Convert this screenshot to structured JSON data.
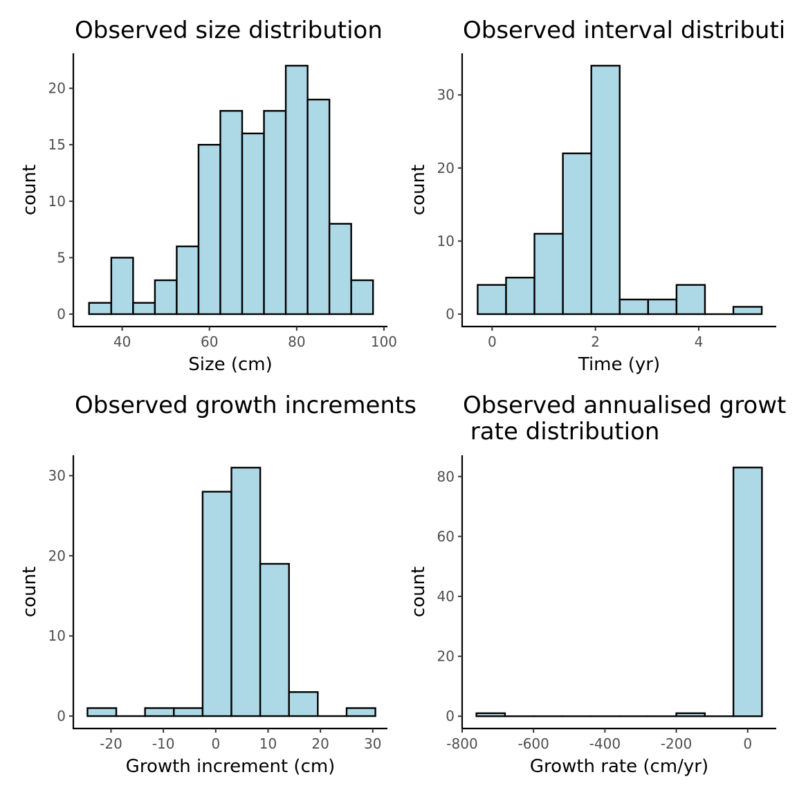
{
  "figure": {
    "bar_fill": "#ADD8E6",
    "bar_outline": "#000000",
    "background": "#FFFFFF"
  },
  "chart_data": [
    {
      "type": "bar",
      "title": [
        "Observed size distribution"
      ],
      "xlabel": "Size (cm)",
      "ylabel": "count",
      "xlim": [
        28.8,
        100.8
      ],
      "ylim": [
        -1.1,
        23.1
      ],
      "xticks": [
        40,
        60,
        80,
        100
      ],
      "xtick_labels": [
        "40",
        "60",
        "80",
        "100"
      ],
      "yticks": [
        0,
        5,
        10,
        15,
        20
      ],
      "ytick_labels": [
        "0",
        "5",
        "10",
        "15",
        "20"
      ],
      "bins": [
        {
          "x0": 32.4,
          "x1": 37.5,
          "count": 1
        },
        {
          "x0": 37.5,
          "x1": 42.5,
          "count": 5
        },
        {
          "x0": 42.5,
          "x1": 47.5,
          "count": 1
        },
        {
          "x0": 47.5,
          "x1": 52.5,
          "count": 3
        },
        {
          "x0": 52.5,
          "x1": 57.5,
          "count": 6
        },
        {
          "x0": 57.5,
          "x1": 62.5,
          "count": 15
        },
        {
          "x0": 62.5,
          "x1": 67.5,
          "count": 18
        },
        {
          "x0": 67.5,
          "x1": 72.5,
          "count": 16
        },
        {
          "x0": 72.5,
          "x1": 77.5,
          "count": 18
        },
        {
          "x0": 77.5,
          "x1": 82.5,
          "count": 22
        },
        {
          "x0": 82.5,
          "x1": 87.5,
          "count": 19
        },
        {
          "x0": 87.5,
          "x1": 92.5,
          "count": 8
        },
        {
          "x0": 92.5,
          "x1": 97.5,
          "count": 3
        }
      ]
    },
    {
      "type": "bar",
      "title": [
        "Observed interval distributi"
      ],
      "xlabel": "Time (yr)",
      "ylabel": "count",
      "xlim": [
        -0.58,
        5.5
      ],
      "ylim": [
        -1.7,
        35.7
      ],
      "xticks": [
        0,
        2,
        4
      ],
      "xtick_labels": [
        "0",
        "2",
        "4"
      ],
      "yticks": [
        0,
        10,
        20,
        30
      ],
      "ytick_labels": [
        "0",
        "10",
        "20",
        "30"
      ],
      "bins": [
        {
          "x0": -0.28,
          "x1": 0.27,
          "count": 4
        },
        {
          "x0": 0.27,
          "x1": 0.82,
          "count": 5
        },
        {
          "x0": 0.82,
          "x1": 1.37,
          "count": 11
        },
        {
          "x0": 1.37,
          "x1": 1.92,
          "count": 22
        },
        {
          "x0": 1.92,
          "x1": 2.47,
          "count": 34
        },
        {
          "x0": 2.47,
          "x1": 3.02,
          "count": 2
        },
        {
          "x0": 3.02,
          "x1": 3.57,
          "count": 2
        },
        {
          "x0": 3.57,
          "x1": 4.12,
          "count": 4
        },
        {
          "x0": 4.12,
          "x1": 4.67,
          "count": 0
        },
        {
          "x0": 4.67,
          "x1": 5.22,
          "count": 1
        }
      ]
    },
    {
      "type": "bar",
      "title": [
        "Observed growth increments"
      ],
      "xlabel": "Growth increment (cm)",
      "ylabel": "count",
      "xlim": [
        -27.2,
        32.8
      ],
      "ylim": [
        -1.55,
        32.55
      ],
      "xticks": [
        -20,
        -10,
        0,
        10,
        20,
        30
      ],
      "xtick_labels": [
        "-20",
        "-10",
        "0",
        "10",
        "20",
        "30"
      ],
      "yticks": [
        0,
        10,
        20,
        30
      ],
      "ytick_labels": [
        "0",
        "10",
        "20",
        "30"
      ],
      "bins": [
        {
          "x0": -24.5,
          "x1": -19.0,
          "count": 1
        },
        {
          "x0": -19.0,
          "x1": -13.5,
          "count": 0
        },
        {
          "x0": -13.5,
          "x1": -8.0,
          "count": 1
        },
        {
          "x0": -8.0,
          "x1": -2.5,
          "count": 1
        },
        {
          "x0": -2.5,
          "x1": 3.0,
          "count": 28
        },
        {
          "x0": 3.0,
          "x1": 8.5,
          "count": 31
        },
        {
          "x0": 8.5,
          "x1": 14.0,
          "count": 19
        },
        {
          "x0": 14.0,
          "x1": 19.5,
          "count": 3
        },
        {
          "x0": 19.5,
          "x1": 25.0,
          "count": 0
        },
        {
          "x0": 25.0,
          "x1": 30.5,
          "count": 1
        }
      ]
    },
    {
      "type": "bar",
      "title": [
        "Observed annualised growt",
        " rate distribution"
      ],
      "xlabel": "Growth rate (cm/yr)",
      "ylabel": "count",
      "xlim": [
        -800,
        80
      ],
      "ylim": [
        -4.1,
        87.1
      ],
      "xticks": [
        -800,
        -600,
        -400,
        -200,
        0
      ],
      "xtick_labels": [
        "-800",
        "-600",
        "-400",
        "-200",
        "0"
      ],
      "yticks": [
        0,
        20,
        40,
        60,
        80
      ],
      "ytick_labels": [
        "0",
        "20",
        "40",
        "60",
        "80"
      ],
      "bins": [
        {
          "x0": -760,
          "x1": -680,
          "count": 1
        },
        {
          "x0": -680,
          "x1": -600,
          "count": 0
        },
        {
          "x0": -600,
          "x1": -520,
          "count": 0
        },
        {
          "x0": -520,
          "x1": -440,
          "count": 0
        },
        {
          "x0": -440,
          "x1": -360,
          "count": 0
        },
        {
          "x0": -360,
          "x1": -280,
          "count": 0
        },
        {
          "x0": -280,
          "x1": -200,
          "count": 0
        },
        {
          "x0": -200,
          "x1": -120,
          "count": 1
        },
        {
          "x0": -120,
          "x1": -40,
          "count": 0
        },
        {
          "x0": -40,
          "x1": 40,
          "count": 83
        }
      ]
    }
  ]
}
